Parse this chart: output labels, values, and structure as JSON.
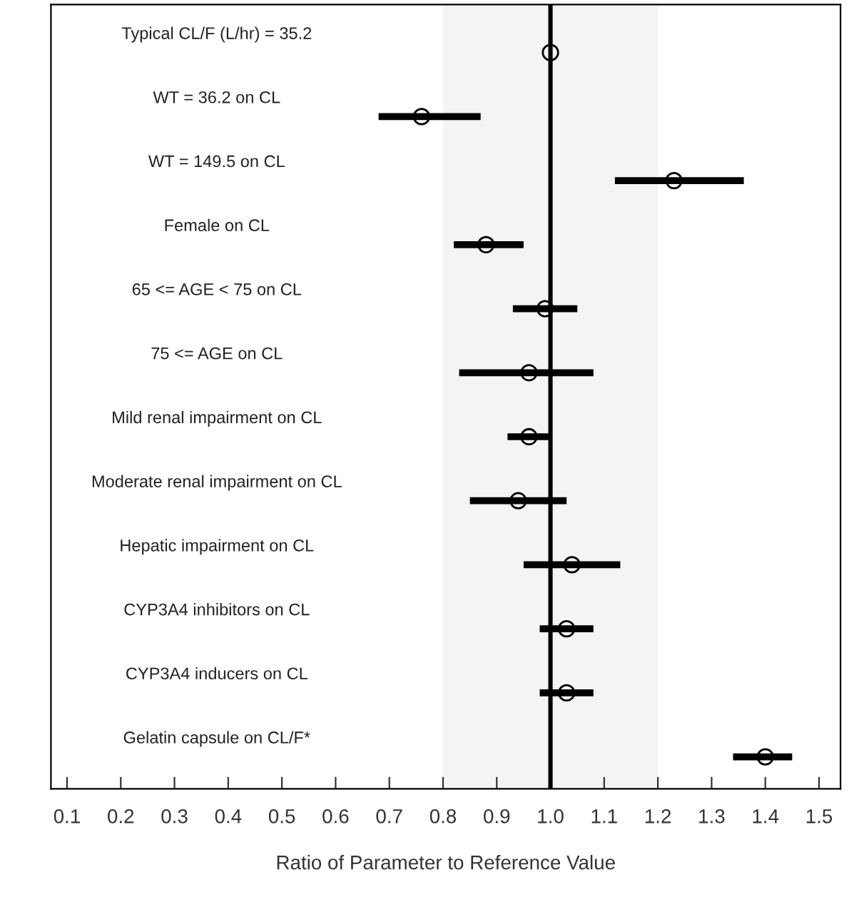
{
  "chart_data": {
    "type": "scatter",
    "orientation": "horizontal",
    "xlabel": "Ratio of Parameter to Reference Value",
    "categories": [
      "Typical CL/F (L/hr) = 35.2",
      "WT = 36.2 on CL",
      "WT = 149.5 on CL",
      "Female on CL",
      "65 <= AGE < 75 on CL",
      "75 <= AGE on CL",
      "Mild renal impairment on CL",
      "Moderate renal impairment on CL",
      "Hepatic impairment on CL",
      "CYP3A4 inhibitors on CL",
      "CYP3A4 inducers on CL",
      "Gelatin capsule on CL/F*"
    ],
    "series": [
      {
        "color": "#000000",
        "values": [
          1.0,
          0.76,
          1.23,
          0.88,
          0.99,
          0.96,
          0.96,
          0.94,
          1.04,
          1.03,
          1.03,
          1.4
        ],
        "errors": [
          null,
          [
            0.68,
            0.87
          ],
          [
            1.12,
            1.36
          ],
          [
            0.82,
            0.95
          ],
          [
            0.93,
            1.05
          ],
          [
            0.83,
            1.08
          ],
          [
            0.92,
            1.0
          ],
          [
            0.85,
            1.03
          ],
          [
            0.95,
            1.13
          ],
          [
            0.98,
            1.08
          ],
          [
            0.98,
            1.08
          ],
          [
            1.34,
            1.45
          ]
        ]
      }
    ],
    "xlim": [
      0.07,
      1.54
    ],
    "xticks": [
      {
        "value": 0.1,
        "label": "0.1"
      },
      {
        "value": 0.2,
        "label": "0.2"
      },
      {
        "value": 0.3,
        "label": "0.3"
      },
      {
        "value": 0.4,
        "label": "0.4"
      },
      {
        "value": 0.5,
        "label": "0.5"
      },
      {
        "value": 0.6,
        "label": "0.6"
      },
      {
        "value": 0.7,
        "label": "0.7"
      },
      {
        "value": 0.8,
        "label": "0.8"
      },
      {
        "value": 0.9,
        "label": "0.9"
      },
      {
        "value": 1.0,
        "label": "1.0"
      },
      {
        "value": 1.1,
        "label": "1.1"
      },
      {
        "value": 1.2,
        "label": "1.2"
      },
      {
        "value": 1.3,
        "label": "1.3"
      },
      {
        "value": 1.4,
        "label": "1.4"
      },
      {
        "value": 1.5,
        "label": "1.5"
      }
    ],
    "ref_lines": [
      {
        "axis": "x",
        "value": 1.0,
        "color": "#000000"
      }
    ],
    "bands": [
      {
        "axis": "x",
        "from": 0.8,
        "to": 1.2,
        "color": "#f4f4f4"
      }
    ],
    "marker": "circle",
    "grid": false,
    "legend": false
  }
}
